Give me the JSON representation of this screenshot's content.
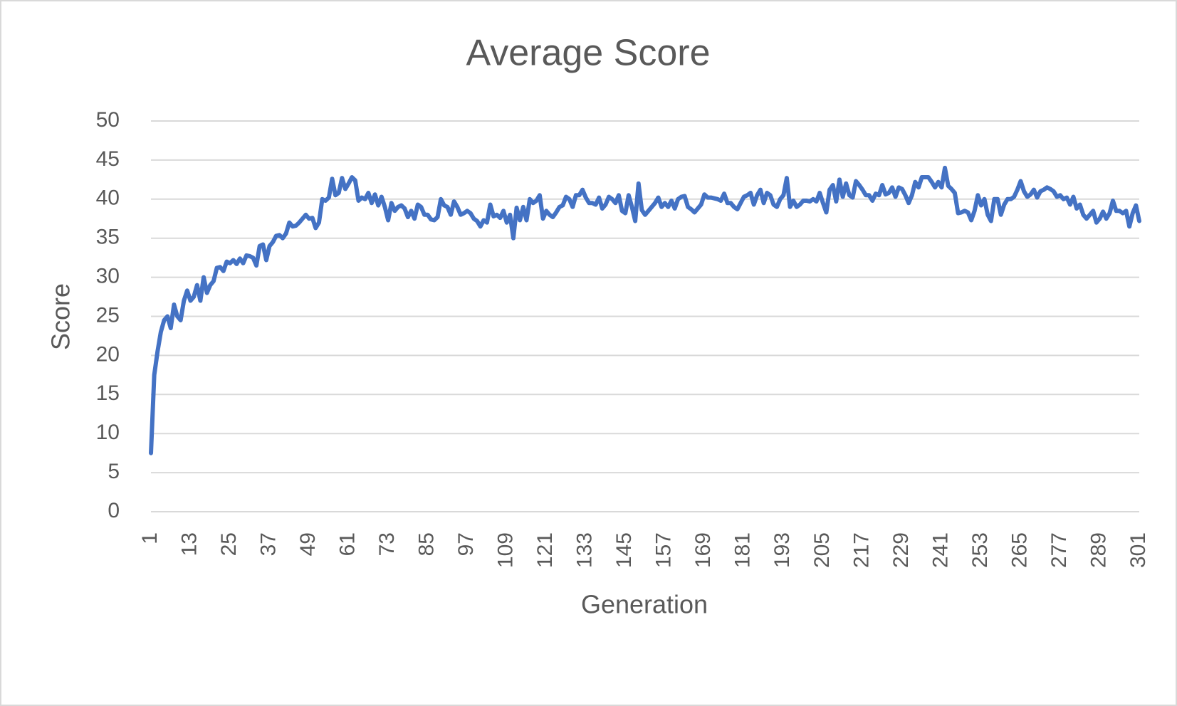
{
  "chart_data": {
    "type": "line",
    "title": "Average Score",
    "x_label": "Generation",
    "y_label": "Score",
    "color": "#4472c4",
    "grid": true,
    "xlim": [
      1,
      301
    ],
    "xticks": [
      1,
      13,
      25,
      37,
      49,
      61,
      73,
      85,
      97,
      109,
      121,
      133,
      145,
      157,
      169,
      181,
      193,
      205,
      217,
      229,
      241,
      253,
      265,
      277,
      289,
      301
    ],
    "ylim": [
      0,
      50
    ],
    "yticks": [
      0,
      5,
      10,
      15,
      20,
      25,
      30,
      35,
      40,
      45,
      50
    ],
    "x": [
      1,
      2,
      3,
      4,
      5,
      6,
      7,
      8,
      9,
      10,
      11,
      12,
      13,
      14,
      15,
      16,
      17,
      18,
      19,
      20,
      21,
      22,
      23,
      24,
      25,
      26,
      27,
      28,
      29,
      30,
      31,
      32,
      33,
      34,
      35,
      36,
      37,
      38,
      39,
      40,
      41,
      42,
      43,
      44,
      45,
      46,
      47,
      48,
      49,
      50,
      51,
      52,
      53,
      54,
      55,
      56,
      57,
      58,
      59,
      60,
      61,
      62,
      63,
      64,
      65,
      66,
      67,
      68,
      69,
      70,
      71,
      72,
      73,
      74,
      75,
      76,
      77,
      78,
      79,
      80,
      81,
      82,
      83,
      84,
      85,
      86,
      87,
      88,
      89,
      90,
      91,
      92,
      93,
      94,
      95,
      96,
      97,
      98,
      99,
      100,
      101,
      102,
      103,
      104,
      105,
      106,
      107,
      108,
      109,
      110,
      111,
      112,
      113,
      114,
      115,
      116,
      117,
      118,
      119,
      120,
      121,
      122,
      123,
      124,
      125,
      126,
      127,
      128,
      129,
      130,
      131,
      132,
      133,
      134,
      135,
      136,
      137,
      138,
      139,
      140,
      141,
      142,
      143,
      144,
      145,
      146,
      147,
      148,
      149,
      150,
      151,
      152,
      153,
      154,
      155,
      156,
      157,
      158,
      159,
      160,
      161,
      162,
      163,
      164,
      165,
      166,
      167,
      168,
      169,
      170,
      171,
      172,
      173,
      174,
      175,
      176,
      177,
      178,
      179,
      180,
      181,
      182,
      183,
      184,
      185,
      186,
      187,
      188,
      189,
      190,
      191,
      192,
      193,
      194,
      195,
      196,
      197,
      198,
      199,
      200,
      201,
      202,
      203,
      204,
      205,
      206,
      207,
      208,
      209,
      210,
      211,
      212,
      213,
      214,
      215,
      216,
      217,
      218,
      219,
      220,
      221,
      222,
      223,
      224,
      225,
      226,
      227,
      228,
      229,
      230,
      231,
      232,
      233,
      234,
      235,
      236,
      237,
      238,
      239,
      240,
      241,
      242,
      243,
      244,
      245,
      246,
      247,
      248,
      249,
      250,
      251,
      252,
      253,
      254,
      255,
      256,
      257,
      258,
      259,
      260,
      261,
      262,
      263,
      264,
      265,
      266,
      267,
      268,
      269,
      270,
      271,
      272,
      273,
      274,
      275,
      276,
      277,
      278,
      279,
      280,
      281,
      282,
      283,
      284,
      285,
      286,
      287,
      288,
      289,
      290,
      291,
      292,
      293,
      294,
      295,
      296,
      297,
      298,
      299,
      300,
      301
    ],
    "values": [
      7.5,
      17.5,
      20.5,
      23,
      24.5,
      25,
      23.5,
      26.5,
      25,
      24.5,
      27,
      28.3,
      27,
      27.5,
      29,
      27,
      30,
      28,
      29,
      29.5,
      31.2,
      31.3,
      30.8,
      32,
      31.8,
      32.2,
      31.7,
      32.4,
      31.8,
      32.8,
      32.7,
      32.5,
      31.5,
      34,
      34.2,
      32.2,
      34,
      34.5,
      35.3,
      35.4,
      35,
      35.6,
      37,
      36.5,
      36.6,
      37,
      37.5,
      38,
      37.5,
      37.6,
      36.3,
      37,
      40,
      39.8,
      40.2,
      42.6,
      40.5,
      40.8,
      42.7,
      41.3,
      42,
      42.8,
      42.4,
      39.8,
      40.2,
      40,
      40.8,
      39.5,
      40.6,
      39.2,
      40.3,
      39,
      37.3,
      39.5,
      38.5,
      39,
      39.2,
      38.8,
      37.7,
      38.5,
      37.5,
      39.3,
      39,
      38,
      38,
      37.4,
      37.3,
      37.7,
      40,
      39.2,
      39,
      38,
      39.7,
      39,
      38,
      38.2,
      38.5,
      38.2,
      37.5,
      37.2,
      36.5,
      37.3,
      37,
      39.3,
      37.8,
      38,
      37.6,
      38.5,
      37,
      38,
      35,
      38.9,
      37.3,
      39,
      37.3,
      40,
      39.5,
      39.8,
      40.5,
      37.5,
      38.5,
      38,
      37.7,
      38.3,
      39,
      39.2,
      40.3,
      40,
      39,
      40.5,
      40.5,
      41.2,
      40.2,
      39.5,
      39.5,
      39.3,
      40.2,
      38.8,
      39.3,
      40.3,
      40,
      39.5,
      40.5,
      38.5,
      38.2,
      40.5,
      39,
      37.2,
      42,
      38.6,
      38,
      38.5,
      39,
      39.5,
      40.2,
      39,
      39.5,
      39,
      39.8,
      38.8,
      40,
      40.3,
      40.4,
      39,
      38.7,
      38.3,
      38.8,
      39.3,
      40.6,
      40.2,
      40.2,
      40.1,
      40,
      39.8,
      40.7,
      39.5,
      39.5,
      39,
      38.7,
      39.5,
      40.3,
      40.5,
      40.8,
      39.3,
      40.5,
      41.2,
      39.5,
      40.8,
      40.5,
      39.3,
      39,
      40,
      40.5,
      42.7,
      39,
      39.8,
      39,
      39.3,
      39.8,
      39.8,
      39.7,
      40,
      39.7,
      40.8,
      39.5,
      38.3,
      41.2,
      41.8,
      39.7,
      42.5,
      40.3,
      42,
      40.5,
      40.2,
      42.3,
      41.8,
      41.2,
      40.5,
      40.5,
      39.8,
      40.7,
      40.5,
      41.8,
      40.6,
      40.8,
      41.5,
      40.3,
      41.5,
      41.3,
      40.5,
      39.5,
      40.5,
      42.2,
      41.5,
      42.8,
      42.8,
      42.8,
      42.2,
      41.5,
      42.2,
      41.5,
      44,
      41.7,
      41.3,
      40.8,
      38.2,
      38.3,
      38.5,
      38.3,
      37.3,
      38.5,
      40.5,
      39.2,
      40,
      38,
      37.2,
      40,
      40,
      38,
      39.3,
      40,
      40,
      40.3,
      41.2,
      42.3,
      41,
      40.3,
      40.6,
      41.2,
      40.2,
      41,
      41.2,
      41.5,
      41.3,
      41,
      40.3,
      40.5,
      40,
      40.2,
      39.3,
      40.3,
      38.8,
      39.3,
      38,
      37.5,
      38,
      38.5,
      37,
      37.5,
      38.4,
      37.5,
      38.2,
      39.8,
      38.5,
      38.5,
      38.2,
      38.5,
      36.5,
      38.2,
      39.2,
      37.2
    ]
  }
}
